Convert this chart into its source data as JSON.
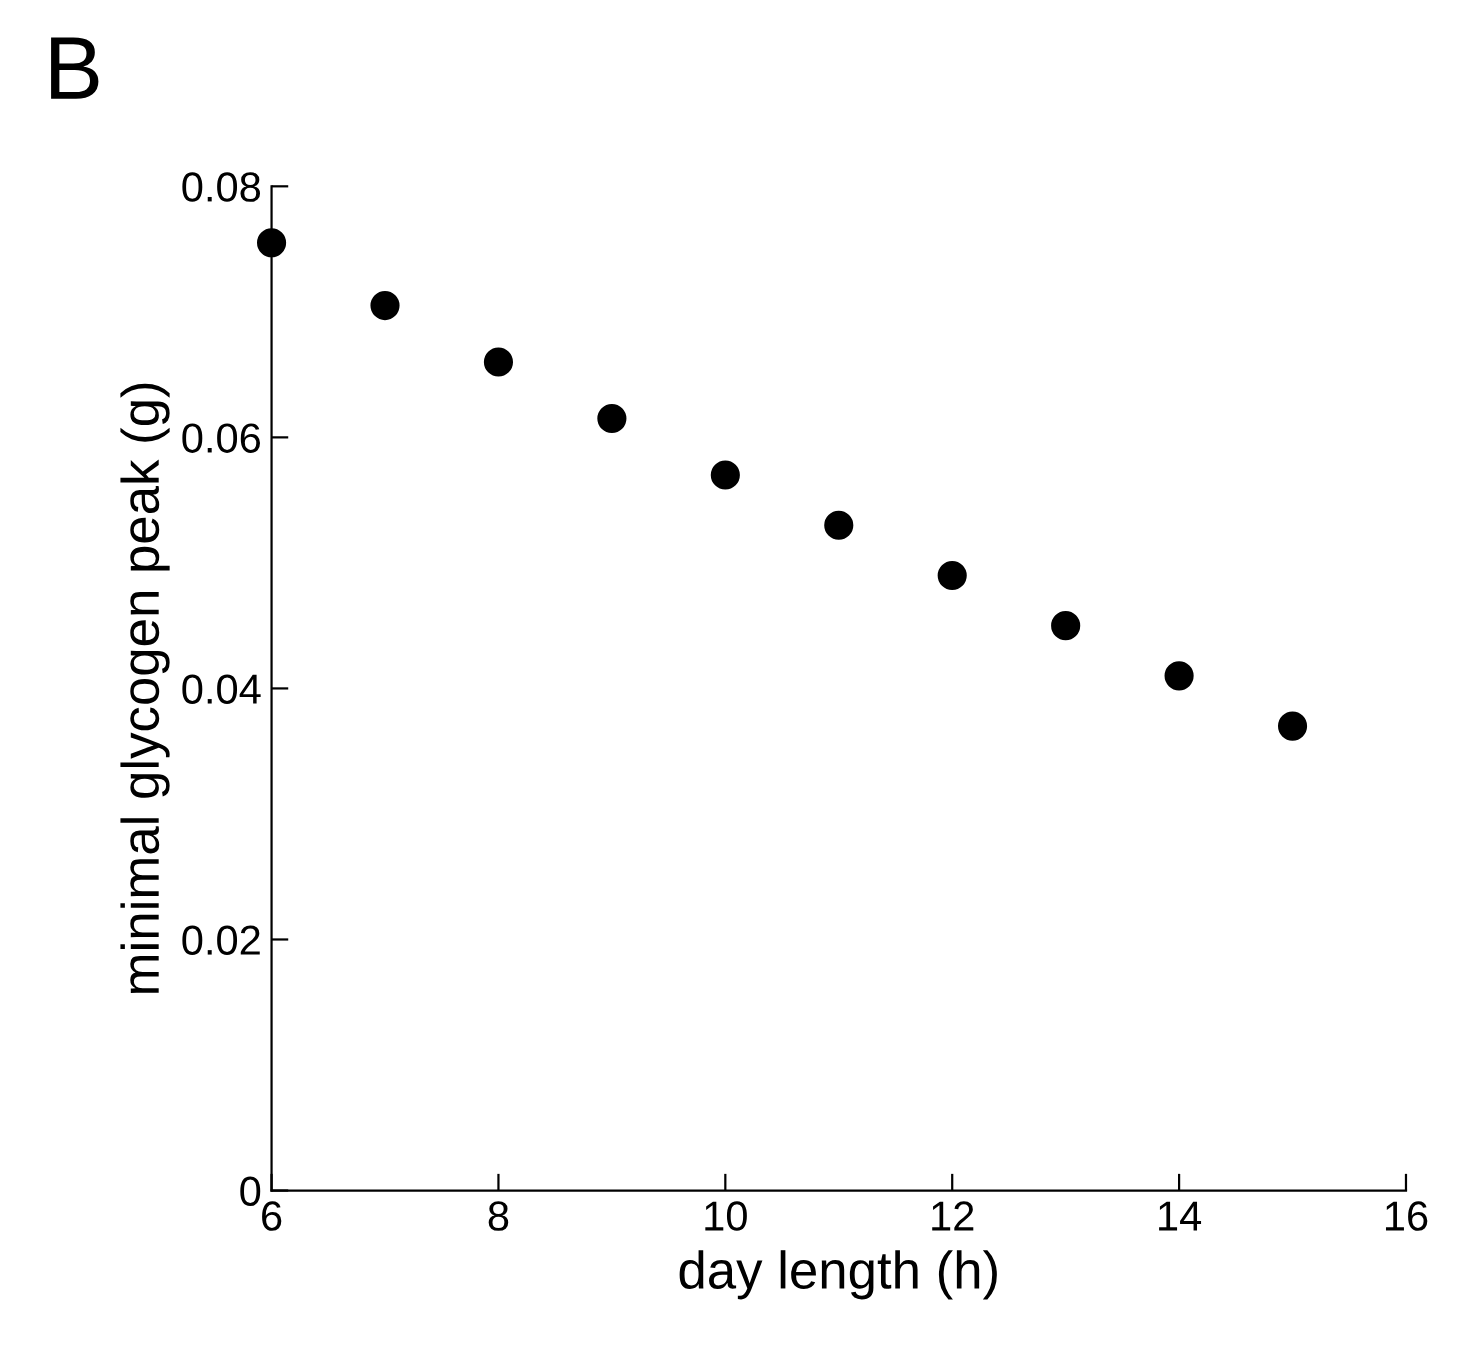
{
  "chart_data": {
    "type": "scatter",
    "x": [
      6,
      7,
      8,
      9,
      10,
      11,
      12,
      13,
      14,
      15
    ],
    "values": [
      0.0755,
      0.0705,
      0.066,
      0.0615,
      0.057,
      0.053,
      0.049,
      0.045,
      0.041,
      0.037
    ],
    "color": "#000000",
    "marker": "circle",
    "xlabel": "day length (h)",
    "ylabel": "minimal glycogen peak (g)",
    "xlim": [
      6,
      16
    ],
    "xticks": [
      6,
      8,
      10,
      12,
      14,
      16
    ],
    "ylim": [
      0,
      0.08
    ],
    "yticks": [
      0,
      0.02,
      0.04,
      0.06,
      0.08
    ],
    "grid": false,
    "legend": false,
    "annotations": [
      "B"
    ]
  }
}
